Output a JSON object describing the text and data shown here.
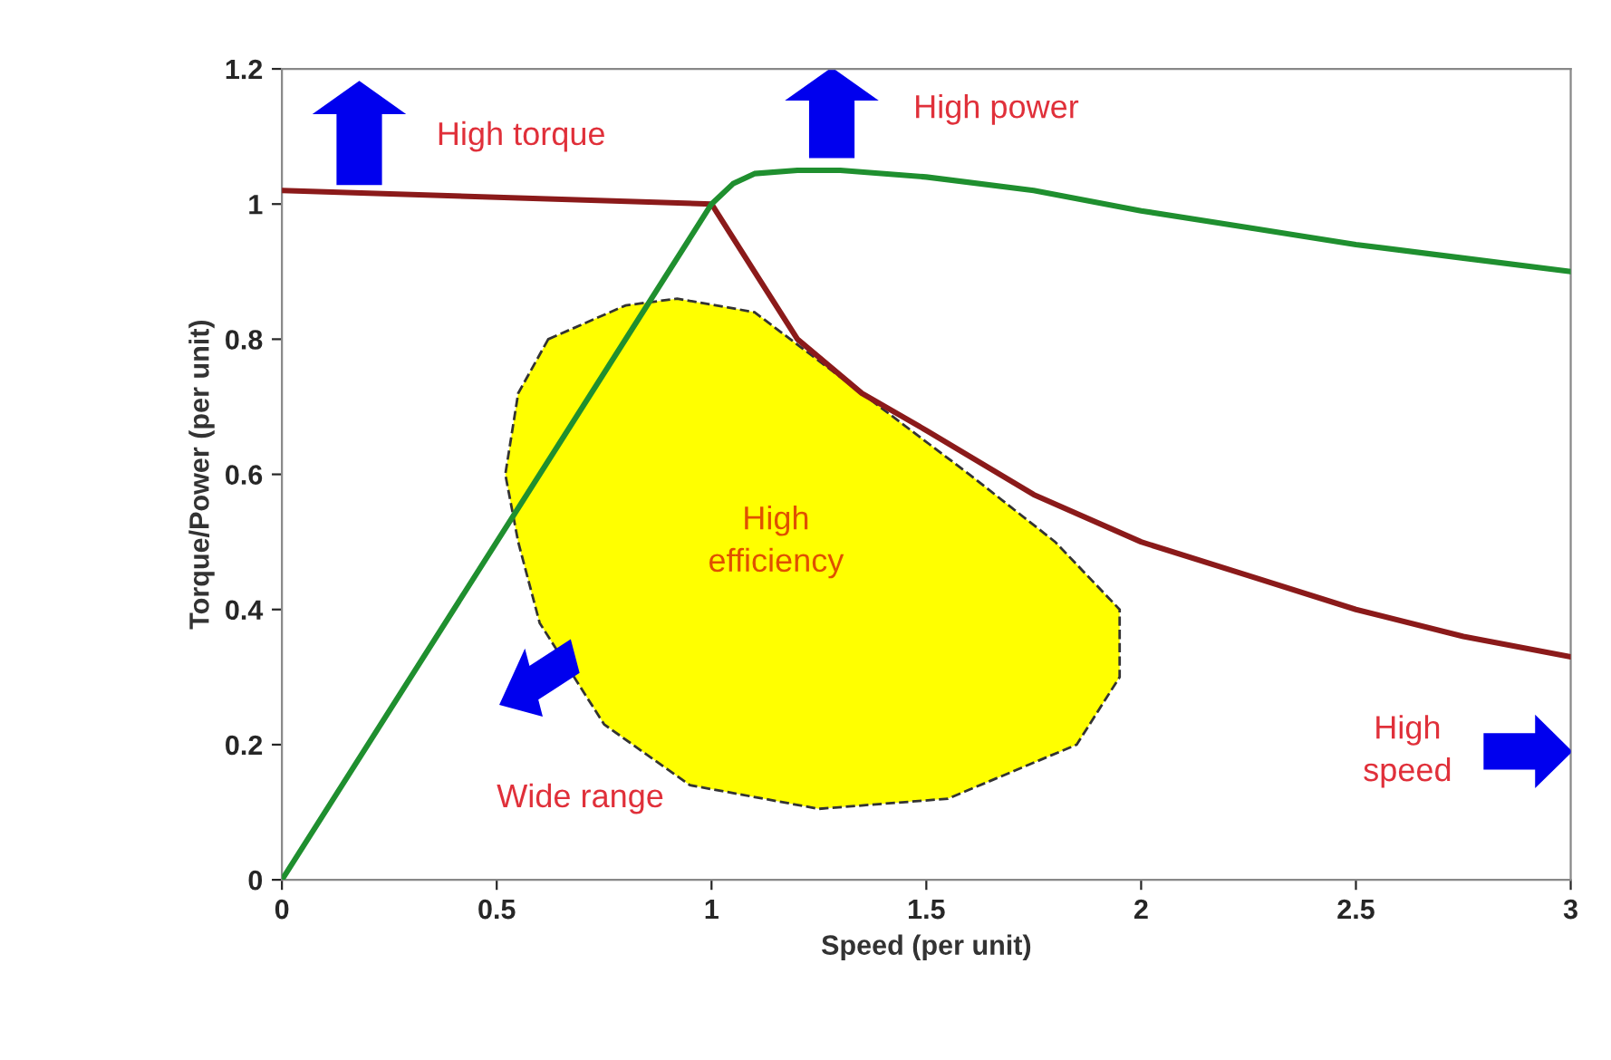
{
  "chart_data": {
    "type": "line",
    "xlabel": "Speed (per unit)",
    "ylabel": "Torque/Power (per unit)",
    "xlim": [
      0,
      3
    ],
    "ylim": [
      0,
      1.2
    ],
    "xticks": [
      0,
      0.5,
      1,
      1.5,
      2,
      2.5,
      3
    ],
    "yticks": [
      0,
      0.2,
      0.4,
      0.6,
      0.8,
      1,
      1.2
    ],
    "grid": false,
    "legend": false,
    "series": [
      {
        "color": "#8b1a1a",
        "x": [
          0,
          0.5,
          1,
          1.1,
          1.2,
          1.35,
          1.5,
          1.75,
          2,
          2.25,
          2.5,
          2.75,
          3
        ],
        "values": [
          1.02,
          1.01,
          1.0,
          0.9,
          0.8,
          0.72,
          0.665,
          0.57,
          0.5,
          0.45,
          0.4,
          0.36,
          0.33
        ]
      },
      {
        "color": "#1f8f2f",
        "x": [
          0,
          0.5,
          1,
          1.05,
          1.1,
          1.2,
          1.3,
          1.5,
          1.75,
          2,
          2.25,
          2.5,
          2.75,
          3
        ],
        "values": [
          0,
          0.5,
          1.0,
          1.03,
          1.045,
          1.05,
          1.05,
          1.04,
          1.02,
          0.99,
          0.965,
          0.94,
          0.92,
          0.9
        ]
      }
    ],
    "annotations": [
      "High torque",
      "High power",
      "High\nefficiency",
      "Wide range",
      "High\nspeed"
    ]
  }
}
